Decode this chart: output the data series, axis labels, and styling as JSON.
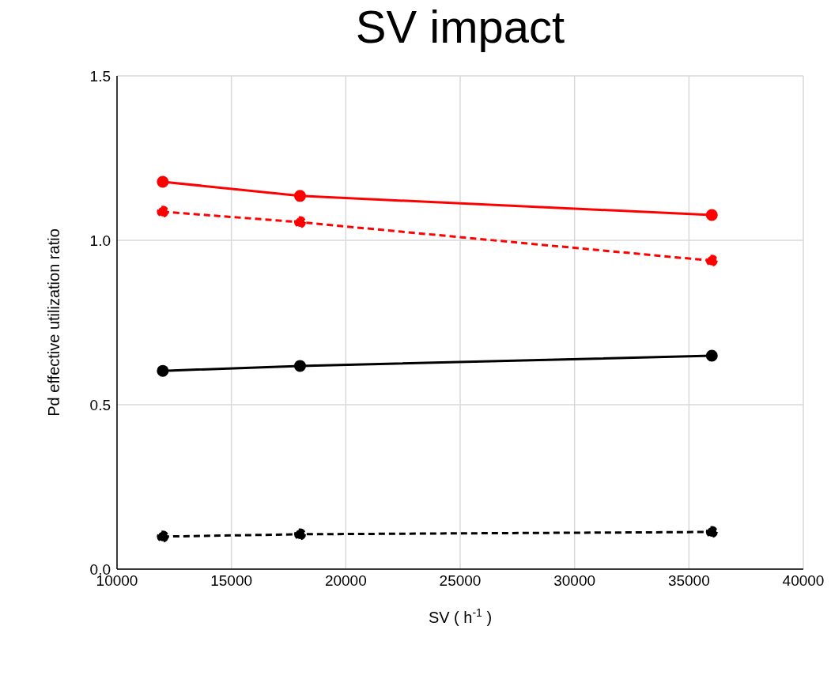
{
  "chart_data": {
    "type": "line",
    "title": "SV impact",
    "xlabel": "SV ( h$^{-1}$ )",
    "ylabel": "Pd effective utilization ratio",
    "x": [
      12000,
      18000,
      36000
    ],
    "series": [
      {
        "color": "#ff0000",
        "values": [
          1.178,
          1.135,
          1.077
        ],
        "line_style": "solid"
      },
      {
        "color": "#ff0000",
        "values": [
          1.087,
          1.055,
          0.938
        ],
        "line_style": "dashed"
      },
      {
        "color": "#000000",
        "values": [
          0.603,
          0.618,
          0.649
        ],
        "line_style": "solid"
      },
      {
        "color": "#000000",
        "values": [
          0.099,
          0.106,
          0.113
        ],
        "line_style": "dashed"
      }
    ],
    "xlim": [
      10000,
      40000
    ],
    "xticks": [
      10000,
      15000,
      20000,
      25000,
      30000,
      35000,
      40000
    ],
    "ylim": [
      0,
      1.5
    ],
    "yticks": [
      {
        "value": 0,
        "label": "0.0"
      },
      {
        "value": 0.5,
        "label": "0.5"
      },
      {
        "value": 1,
        "label": "1.0"
      },
      {
        "value": 1.5,
        "label": "1.5"
      }
    ],
    "grid": true,
    "marker": "circle",
    "legend": false
  }
}
